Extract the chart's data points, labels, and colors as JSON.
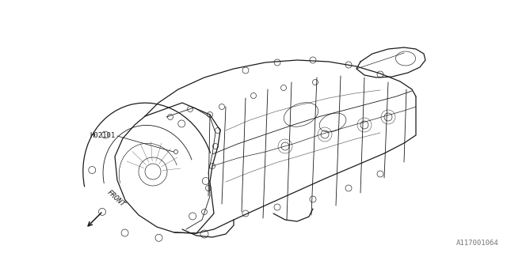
{
  "background_color": "#ffffff",
  "line_color": "#1a1a1a",
  "label_h02101": "H02101",
  "label_front": "FRONT",
  "part_number": "A117001064",
  "fig_width": 6.4,
  "fig_height": 3.2,
  "dpi": 100
}
